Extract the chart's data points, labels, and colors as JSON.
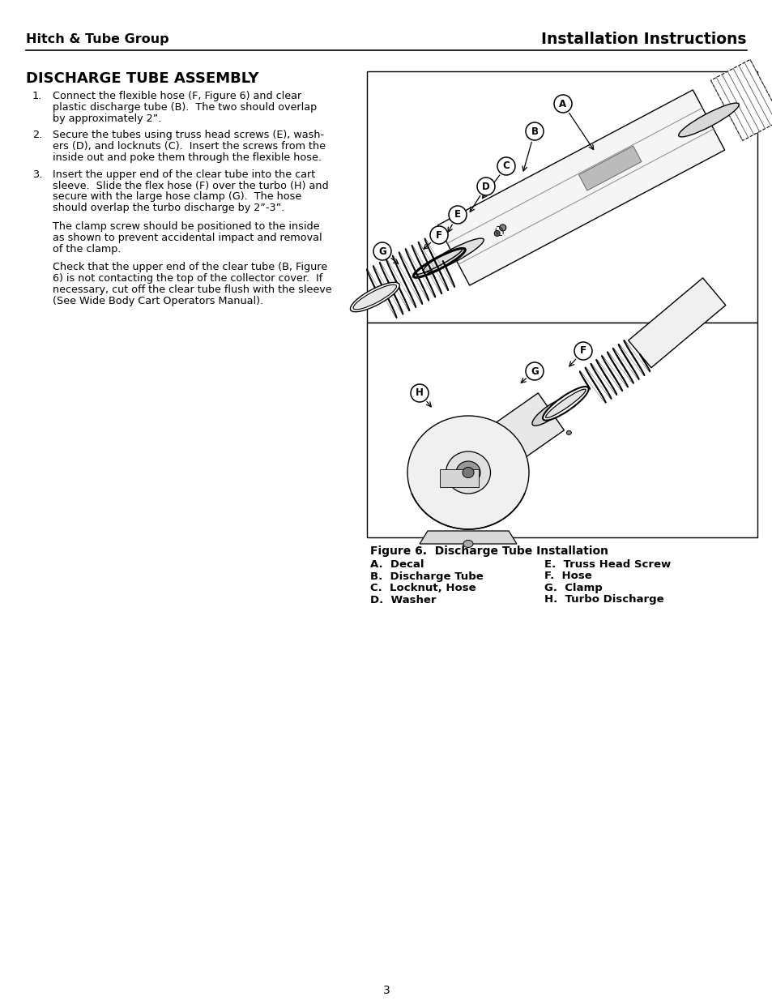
{
  "page_bg": "#ffffff",
  "header_left": "Hitch & Tube Group",
  "header_right": "Installation Instructions",
  "section_title": "DISCHARGE TUBE ASSEMBLY",
  "item1": "Connect the flexible hose (F, Figure 6) and clear\nplastic discharge tube (B).  The two should overlap\nby approximately 2”.",
  "item2": "Secure the tubes using truss head screws (E), wash-\ners (D), and locknuts (C).  Insert the screws from the\ninside out and poke them through the flexible hose.",
  "item3": "Insert the upper end of the clear tube into the cart\nsleeve.  Slide the flex hose (F) over the turbo (H) and\nsecure with the large hose clamp (G).  The hose\nshould overlap the turbo discharge by 2”-3”.",
  "para1": "The clamp screw should be positioned to the inside\nas shown to prevent accidental impact and removal\nof the clamp.",
  "para2": "Check that the upper end of the clear tube (B, Figure\n6) is not contacting the top of the collector cover.  If\nnecessary, cut off the clear tube flush with the sleeve\n(See Wide Body Cart Operators Manual).",
  "figure_caption": "Figure 6.  Discharge Tube Installation",
  "legend_col1": [
    "A.  Decal",
    "B.  Discharge Tube",
    "C.  Locknut, Hose",
    "D.  Washer"
  ],
  "legend_col2": [
    "E.  Truss Head Screw",
    "F.  Hose",
    "G.  Clamp",
    "H.  Turbo Discharge"
  ],
  "page_number": "3"
}
